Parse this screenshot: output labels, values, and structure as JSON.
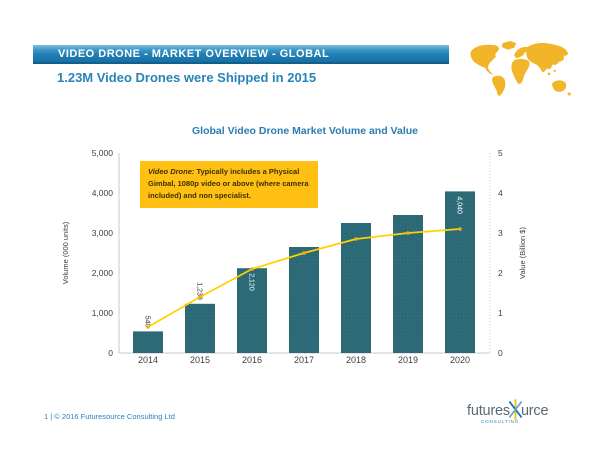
{
  "header": {
    "title": "VIDEO DRONE - MARKET OVERVIEW - GLOBAL",
    "subtitle": "1.23M Video Drones were Shipped in 2015"
  },
  "annotation": {
    "lead": "Video Drone:",
    "body": " Typically includes a Physical Gimbal, 1080p video or above (where camera included) and non specialist."
  },
  "chart_data": {
    "type": "bar",
    "title": "Global Video Drone Market Volume and Value",
    "categories": [
      "2014",
      "2015",
      "2016",
      "2017",
      "2018",
      "2019",
      "2020"
    ],
    "series": [
      {
        "name": "Volume",
        "type": "bar",
        "axis": "left",
        "values": [
          540,
          1230,
          2120,
          2650,
          3250,
          3450,
          4040
        ]
      },
      {
        "name": "Value",
        "type": "line",
        "axis": "right",
        "values": [
          0.65,
          1.4,
          2.1,
          2.5,
          2.85,
          3.0,
          3.1
        ]
      }
    ],
    "bar_labels": [
      {
        "text": "540",
        "inside": false
      },
      {
        "text": "1,230",
        "inside": false
      },
      {
        "text": "2,120",
        "inside": true
      },
      null,
      null,
      null,
      {
        "text": "4,040",
        "inside": true
      }
    ],
    "left_axis": {
      "label": "Volume (000 units)",
      "max": 5000,
      "ticks": [
        "0",
        "1,000",
        "2,000",
        "3,000",
        "4,000",
        "5,000"
      ]
    },
    "right_axis": {
      "label": "Value (Billion $)",
      "max": 5,
      "ticks": [
        "0",
        "1",
        "2",
        "3",
        "4",
        "5"
      ]
    },
    "grid": false,
    "legend": "none"
  },
  "footer": {
    "text": "1  |  © 2016 Futuresource  Consulting Ltd"
  },
  "logo": {
    "part1": "futures",
    "part2": "urce",
    "sub": "CONSULTING"
  },
  "colors": {
    "header_blue": "#2382b5",
    "header_blue_dark": "#10608f",
    "accent_blue": "#2884b8",
    "chart_title_blue": "#2a7cb0",
    "bar_teal": "#2c6977",
    "bar_teal_light": "#3f7d8b",
    "line_gold": "#ffd100",
    "marker_gold": "#efb30f",
    "annotation_gold": "#ffc013",
    "annotation_text": "#3b3000",
    "map_gold": "#f2b52a",
    "axis_text": "#3f3f3f",
    "axis_line": "#c8c8c8",
    "label_dark": "#33333f",
    "label_white": "#ffffff",
    "logo_slate": "#5c6670",
    "logo_blue": "#1b75bb",
    "logo_blue_light": "#6fa8d8",
    "logo_yellow": "#f5c400"
  }
}
